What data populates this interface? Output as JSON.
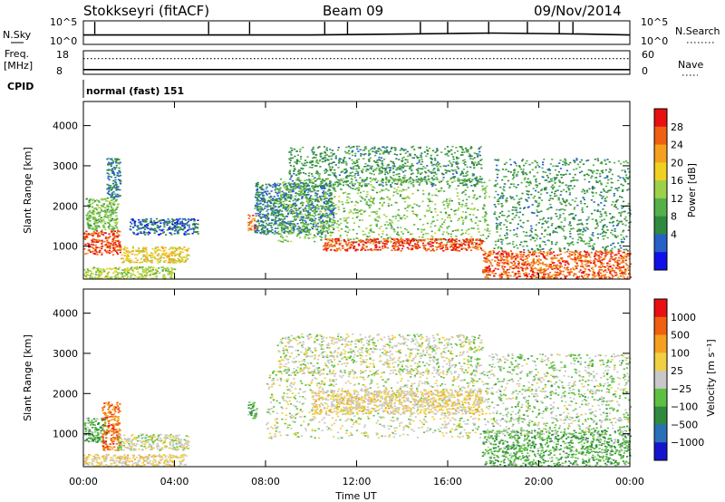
{
  "header": {
    "station": "Stokkseyri (fitACF)",
    "beam": "Beam 09",
    "date": "09/Nov/2014"
  },
  "nsky_panel": {
    "left_label": "N.Sky",
    "left_ticks": [
      "10^5",
      "10^0"
    ],
    "right_label": "N.Search",
    "right_ticks": [
      "10^5",
      "10^0"
    ]
  },
  "freq_panel": {
    "left_label_1": "Freq.",
    "left_label_2": "[MHz]",
    "left_ticks": [
      "18",
      "8"
    ],
    "right_label": "Nave",
    "right_ticks": [
      "60",
      "0"
    ]
  },
  "cpid_panel": {
    "label": "CPID",
    "mode": "normal (fast) 151"
  },
  "power_panel": {
    "ylabel": "Slant Range [km]",
    "yticks": [
      "4000",
      "3000",
      "2000",
      "1000"
    ],
    "colorbar_label": "Power [dB]",
    "colorbar_ticks": [
      "28",
      "24",
      "20",
      "16",
      "12",
      "8",
      "4"
    ],
    "colors": [
      "#1010e8",
      "#2860c8",
      "#2f8a3f",
      "#55b04a",
      "#9cd14a",
      "#f0d020",
      "#f5a020",
      "#f06010",
      "#e81010"
    ]
  },
  "velocity_panel": {
    "ylabel": "Slant Range [km]",
    "yticks": [
      "4000",
      "3000",
      "2000",
      "1000"
    ],
    "colorbar_label": "Velocity  [m s⁻¹]",
    "colorbar_ticks": [
      "1000",
      "500",
      "100",
      "25",
      "−25",
      "−100",
      "−500",
      "−1000"
    ],
    "colors": [
      "#1414d0",
      "#2a70b8",
      "#2f8a3f",
      "#5ec040",
      "#c8c8c8",
      "#f0d040",
      "#f5a020",
      "#f06010",
      "#e81010"
    ]
  },
  "xaxis": {
    "xlabel": "Time UT",
    "xticks": [
      "00:00",
      "04:00",
      "08:00",
      "12:00",
      "16:00",
      "20:00",
      "00:00"
    ]
  },
  "chart_data": [
    {
      "type": "line",
      "panel": "nsky",
      "x_hours": [
        0,
        2,
        4,
        6,
        8,
        10,
        12,
        14,
        16,
        18,
        20,
        22,
        24
      ],
      "y_log10": [
        2.0,
        2.0,
        2.0,
        2.0,
        2.0,
        2.0,
        2.1,
        2.2,
        2.3,
        2.4,
        2.3,
        2.2,
        2.0
      ],
      "spikes_hours": [
        0.5,
        5.5,
        7.3,
        10.6,
        11.6,
        14.8,
        16.0,
        17.8,
        19.5,
        20.9,
        21.5
      ],
      "ylim_log10": [
        0,
        5
      ],
      "xlim_hours": [
        0,
        24
      ]
    },
    {
      "type": "line",
      "panel": "frequency",
      "x_hours": [
        0,
        24
      ],
      "freq_mhz": [
        10,
        10
      ],
      "nave": [
        40,
        40
      ],
      "ylim_mhz": [
        8,
        18
      ],
      "ylim_nave": [
        0,
        60
      ]
    },
    {
      "type": "heatmap",
      "panel": "power",
      "xlim_hours": [
        0,
        24
      ],
      "ylim_km": [
        180,
        4600
      ],
      "zlabel": "Power [dB]",
      "zlim": [
        0,
        32
      ],
      "regions": [
        {
          "t0": 0.0,
          "t1": 1.6,
          "r0": 800,
          "r1": 1400,
          "db": 28
        },
        {
          "t0": 0.1,
          "t1": 1.5,
          "r0": 1400,
          "r1": 2200,
          "db": 14
        },
        {
          "t0": 1.0,
          "t1": 1.6,
          "r0": 2200,
          "r1": 3200,
          "db": 8
        },
        {
          "t0": 1.6,
          "t1": 4.6,
          "r0": 600,
          "r1": 1000,
          "db": 20
        },
        {
          "t0": 0.0,
          "t1": 4.0,
          "r0": 200,
          "r1": 500,
          "db": 16
        },
        {
          "t0": 2.0,
          "t1": 5.0,
          "r0": 1300,
          "r1": 1700,
          "db": 6
        },
        {
          "t0": 7.2,
          "t1": 7.6,
          "r0": 1400,
          "r1": 1800,
          "db": 26
        },
        {
          "t0": 7.5,
          "t1": 11.0,
          "r0": 1300,
          "r1": 2600,
          "db": 8
        },
        {
          "t0": 8.5,
          "t1": 17.8,
          "r0": 1100,
          "r1": 2700,
          "db": 14
        },
        {
          "t0": 9.0,
          "t1": 17.5,
          "r0": 2500,
          "r1": 3500,
          "db": 10
        },
        {
          "t0": 10.5,
          "t1": 17.5,
          "r0": 900,
          "r1": 1200,
          "db": 28
        },
        {
          "t0": 17.5,
          "t1": 24.0,
          "r0": 200,
          "r1": 900,
          "db": 27
        },
        {
          "t0": 18.0,
          "t1": 24.0,
          "r0": 900,
          "r1": 3200,
          "db": 10
        }
      ]
    },
    {
      "type": "heatmap",
      "panel": "velocity",
      "xlim_hours": [
        0,
        24
      ],
      "ylim_km": [
        180,
        4600
      ],
      "zlabel": "Velocity [m s⁻¹]",
      "zlim": [
        -1000,
        1000
      ],
      "regions": [
        {
          "t0": 0.0,
          "t1": 1.0,
          "r0": 800,
          "r1": 1400,
          "v": -300
        },
        {
          "t0": 0.8,
          "t1": 1.6,
          "r0": 600,
          "r1": 1800,
          "v": 600
        },
        {
          "t0": 1.5,
          "t1": 4.6,
          "r0": 600,
          "r1": 1000,
          "v": 20
        },
        {
          "t0": 0.0,
          "t1": 4.5,
          "r0": 200,
          "r1": 500,
          "v": 150
        },
        {
          "t0": 7.2,
          "t1": 7.6,
          "r0": 1400,
          "r1": 1800,
          "v": -300
        },
        {
          "t0": 8.0,
          "t1": 17.8,
          "r0": 900,
          "r1": 2600,
          "v": 0
        },
        {
          "t0": 8.5,
          "t1": 17.5,
          "r0": 2500,
          "r1": 3500,
          "v": 0
        },
        {
          "t0": 10.0,
          "t1": 17.5,
          "r0": 1500,
          "r1": 2100,
          "v": 150
        },
        {
          "t0": 17.5,
          "t1": 24.0,
          "r0": 200,
          "r1": 1100,
          "v": -300
        },
        {
          "t0": 17.8,
          "t1": 24.0,
          "r0": 1000,
          "r1": 3000,
          "v": -100
        }
      ]
    }
  ]
}
